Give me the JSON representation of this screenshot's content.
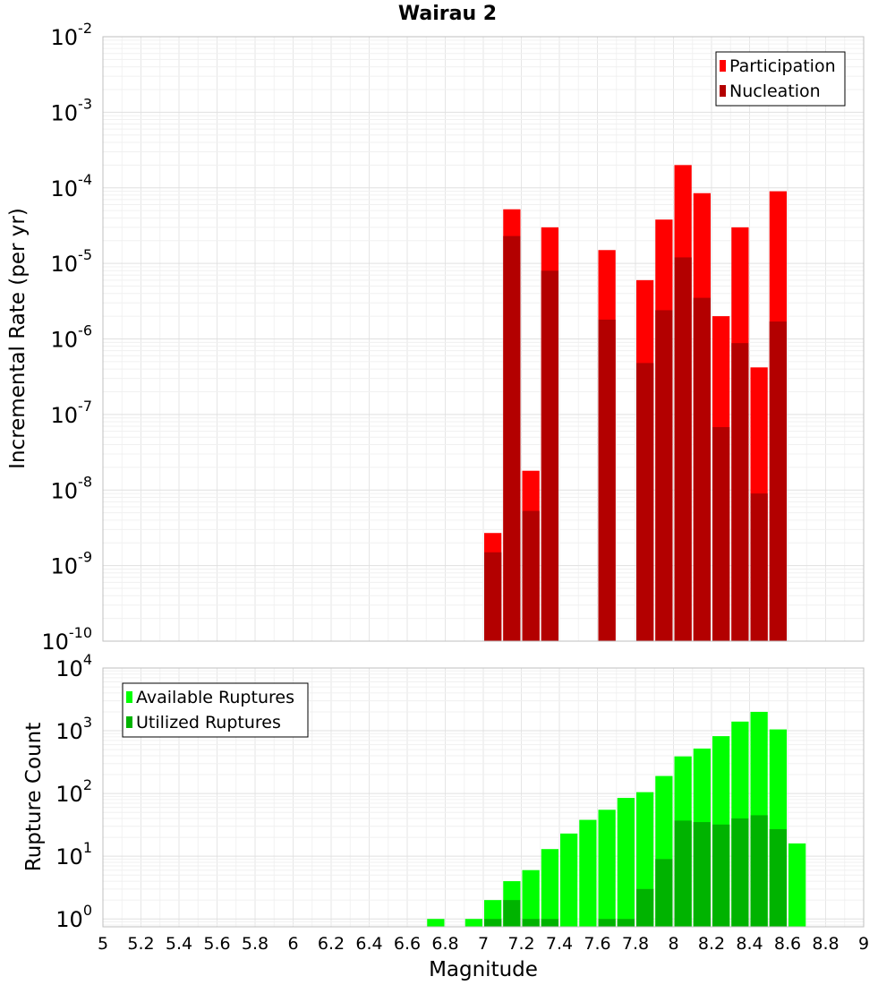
{
  "chart_data": [
    {
      "type": "bar",
      "title": "Wairau 2",
      "ylabel": "Incremental Rate (per yr)",
      "xlabel": "",
      "xlim": [
        5,
        9
      ],
      "ylim": [
        1e-10,
        0.01
      ],
      "yscale": "log",
      "y_tick_exponents": [
        "-2",
        "-3",
        "-4",
        "-5",
        "-6",
        "-7",
        "-8",
        "-9",
        "-10"
      ],
      "y_tick_base": "10",
      "grid": true,
      "legend_position": "top-right",
      "series": [
        {
          "name": "Participation",
          "color": "#ff0000",
          "points": [
            [
              7.05,
              2.7e-09
            ],
            [
              7.15,
              5.2e-05
            ],
            [
              7.25,
              1.8e-08
            ],
            [
              7.35,
              3e-05
            ],
            [
              7.65,
              1.5e-05
            ],
            [
              7.85,
              6e-06
            ],
            [
              7.95,
              3.8e-05
            ],
            [
              8.05,
              0.0002
            ],
            [
              8.15,
              8.5e-05
            ],
            [
              8.25,
              2e-06
            ],
            [
              8.35,
              3e-05
            ],
            [
              8.45,
              4.2e-07
            ],
            [
              8.55,
              9e-05
            ]
          ]
        },
        {
          "name": "Nucleation",
          "color": "#b30000",
          "points": [
            [
              7.05,
              1.5e-09
            ],
            [
              7.15,
              2.3e-05
            ],
            [
              7.25,
              5.3e-09
            ],
            [
              7.35,
              8e-06
            ],
            [
              7.65,
              1.8e-06
            ],
            [
              7.85,
              4.8e-07
            ],
            [
              7.95,
              2.4e-06
            ],
            [
              8.05,
              1.2e-05
            ],
            [
              8.15,
              3.5e-06
            ],
            [
              8.25,
              6.8e-08
            ],
            [
              8.35,
              8.8e-07
            ],
            [
              8.45,
              9e-09
            ],
            [
              8.55,
              1.7e-06
            ]
          ]
        }
      ]
    },
    {
      "type": "bar",
      "title": "",
      "ylabel": "Rupture Count",
      "xlabel": "Magnitude",
      "xlim": [
        5,
        9
      ],
      "ylim": [
        0.75,
        10000
      ],
      "yscale": "log",
      "y_tick_exponents": [
        "4",
        "3",
        "2",
        "1",
        "0"
      ],
      "y_tick_base": "10",
      "x_ticks": [
        "5",
        "5.2",
        "5.4",
        "5.6",
        "5.8",
        "6",
        "6.2",
        "6.4",
        "6.6",
        "6.8",
        "7",
        "7.2",
        "7.4",
        "7.6",
        "7.8",
        "8",
        "8.2",
        "8.4",
        "8.6",
        "8.8",
        "9"
      ],
      "grid": true,
      "legend_position": "top-left",
      "series": [
        {
          "name": "Available Ruptures",
          "color": "#00ff00",
          "points": [
            [
              6.75,
              1
            ],
            [
              6.95,
              1
            ],
            [
              7.05,
              2
            ],
            [
              7.15,
              4
            ],
            [
              7.25,
              6
            ],
            [
              7.35,
              13
            ],
            [
              7.45,
              23
            ],
            [
              7.55,
              38
            ],
            [
              7.65,
              55
            ],
            [
              7.75,
              85
            ],
            [
              7.85,
              105
            ],
            [
              7.95,
              190
            ],
            [
              8.05,
              390
            ],
            [
              8.15,
              520
            ],
            [
              8.25,
              820
            ],
            [
              8.35,
              1400
            ],
            [
              8.45,
              2000
            ],
            [
              8.55,
              1050
            ],
            [
              8.65,
              16
            ]
          ]
        },
        {
          "name": "Utilized Ruptures",
          "color": "#00b300",
          "points": [
            [
              7.05,
              1
            ],
            [
              7.15,
              2
            ],
            [
              7.25,
              1
            ],
            [
              7.35,
              1
            ],
            [
              7.65,
              1
            ],
            [
              7.75,
              1
            ],
            [
              7.85,
              3
            ],
            [
              7.95,
              9
            ],
            [
              8.05,
              37
            ],
            [
              8.15,
              35
            ],
            [
              8.25,
              32
            ],
            [
              8.35,
              40
            ],
            [
              8.45,
              45
            ],
            [
              8.55,
              27
            ]
          ]
        }
      ]
    }
  ]
}
